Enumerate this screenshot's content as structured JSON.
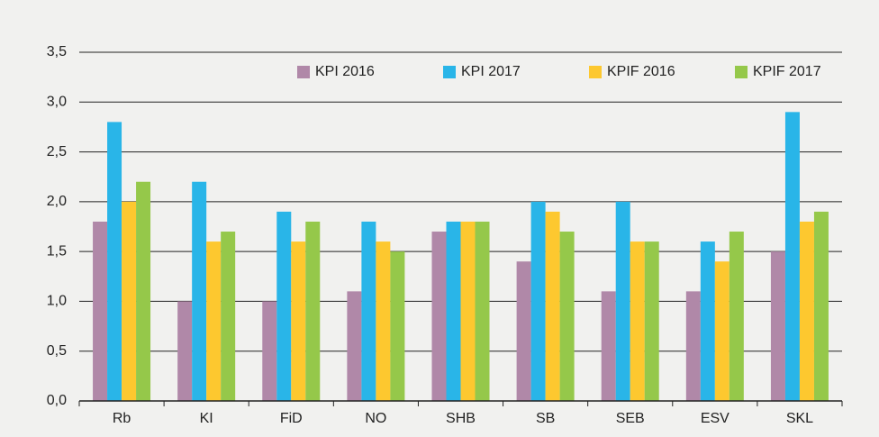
{
  "chart_data": {
    "type": "bar",
    "categories": [
      "Rb",
      "KI",
      "FiD",
      "NO",
      "SHB",
      "SB",
      "SEB",
      "ESV",
      "SKL"
    ],
    "series": [
      {
        "name": "KPI 2016",
        "color": "#b088a8",
        "values": [
          1.8,
          1.0,
          1.0,
          1.1,
          1.7,
          1.4,
          1.1,
          1.1,
          1.5
        ]
      },
      {
        "name": "KPI 2017",
        "color": "#29b5e8",
        "values": [
          2.8,
          2.2,
          1.9,
          1.8,
          1.8,
          2.0,
          2.0,
          1.6,
          2.9
        ]
      },
      {
        "name": "KPIF 2016",
        "color": "#fdc82f",
        "values": [
          2.0,
          1.6,
          1.6,
          1.6,
          1.8,
          1.9,
          1.6,
          1.4,
          1.8
        ]
      },
      {
        "name": "KPIF 2017",
        "color": "#95c84a",
        "values": [
          2.2,
          1.7,
          1.8,
          1.5,
          1.8,
          1.7,
          1.6,
          1.7,
          1.9
        ]
      }
    ],
    "ylim": [
      0,
      3.5
    ],
    "yticks": [
      {
        "value": 0,
        "label": "0,0"
      },
      {
        "value": 0.5,
        "label": "0,5"
      },
      {
        "value": 1,
        "label": "1,0"
      },
      {
        "value": 1.5,
        "label": "1,5"
      },
      {
        "value": 2,
        "label": "2,0"
      },
      {
        "value": 2.5,
        "label": "2,5"
      },
      {
        "value": 3,
        "label": "3,0"
      },
      {
        "value": 3.5,
        "label": "3,5"
      }
    ],
    "grid": true,
    "legend": "top-right"
  }
}
